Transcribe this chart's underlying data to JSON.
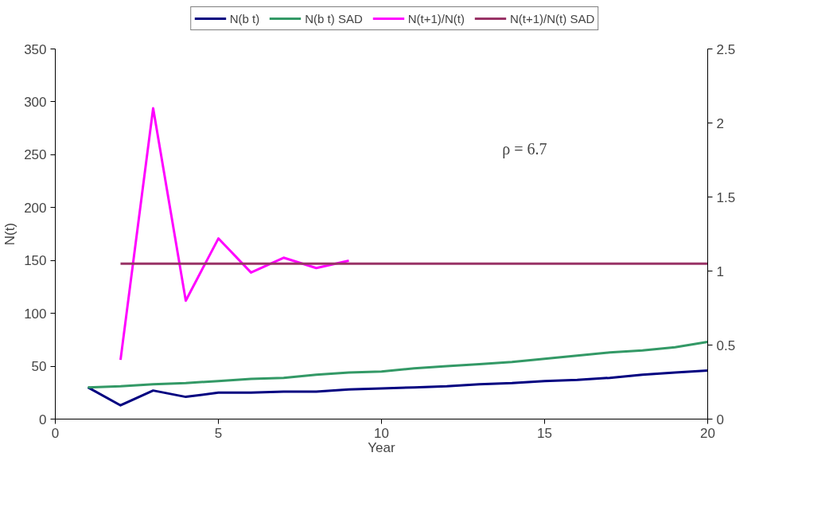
{
  "chart_data": {
    "type": "line",
    "xlabel": "Year",
    "ylabel": "N(t)",
    "x": [
      1,
      2,
      3,
      4,
      5,
      6,
      7,
      8,
      9,
      10,
      11,
      12,
      13,
      14,
      15,
      16,
      17,
      18,
      19,
      20
    ],
    "series": [
      {
        "name": "N(b t)",
        "color": "#000080",
        "values": [
          30,
          13,
          27,
          21,
          25,
          25,
          26,
          26,
          28,
          29,
          30,
          31,
          33,
          34,
          36,
          37,
          39,
          42,
          44,
          46
        ]
      },
      {
        "name": "N(b t) SAD",
        "color": "#339966",
        "values": [
          30,
          31,
          33,
          34,
          36,
          38,
          39,
          42,
          44,
          45,
          48,
          50,
          52,
          54,
          57,
          60,
          63,
          65,
          68,
          73
        ]
      },
      {
        "name": "N(t+1)/N(t)",
        "color": "#ff00ff",
        "axis": "y2",
        "values": [
          null,
          0.4,
          2.1,
          0.8,
          1.22,
          0.99,
          1.09,
          1.02,
          1.07,
          null,
          null,
          null,
          null,
          null,
          null,
          null,
          null,
          null,
          null,
          null
        ]
      },
      {
        "name": "N(t+1)/N(t) SAD",
        "color": "#993366",
        "axis": "y2",
        "values": [
          null,
          1.05,
          1.05,
          1.05,
          1.05,
          1.05,
          1.05,
          1.05,
          1.05,
          1.05,
          1.05,
          1.05,
          1.05,
          1.05,
          1.05,
          1.05,
          1.05,
          1.05,
          1.05,
          1.05
        ]
      }
    ],
    "xlim": [
      0,
      20
    ],
    "xticks": [
      0,
      5,
      10,
      15,
      20
    ],
    "ylim": [
      0,
      350
    ],
    "yticks": [
      0,
      50,
      100,
      150,
      200,
      250,
      300,
      350
    ],
    "y2lim": [
      0,
      2.5
    ],
    "y2ticks": [
      0,
      0.5,
      1,
      1.5,
      2,
      2.5
    ],
    "annotations": [
      "ρ = 6.7"
    ],
    "legend": "top",
    "grid": false,
    "marker": "none",
    "line_style": "solid"
  }
}
